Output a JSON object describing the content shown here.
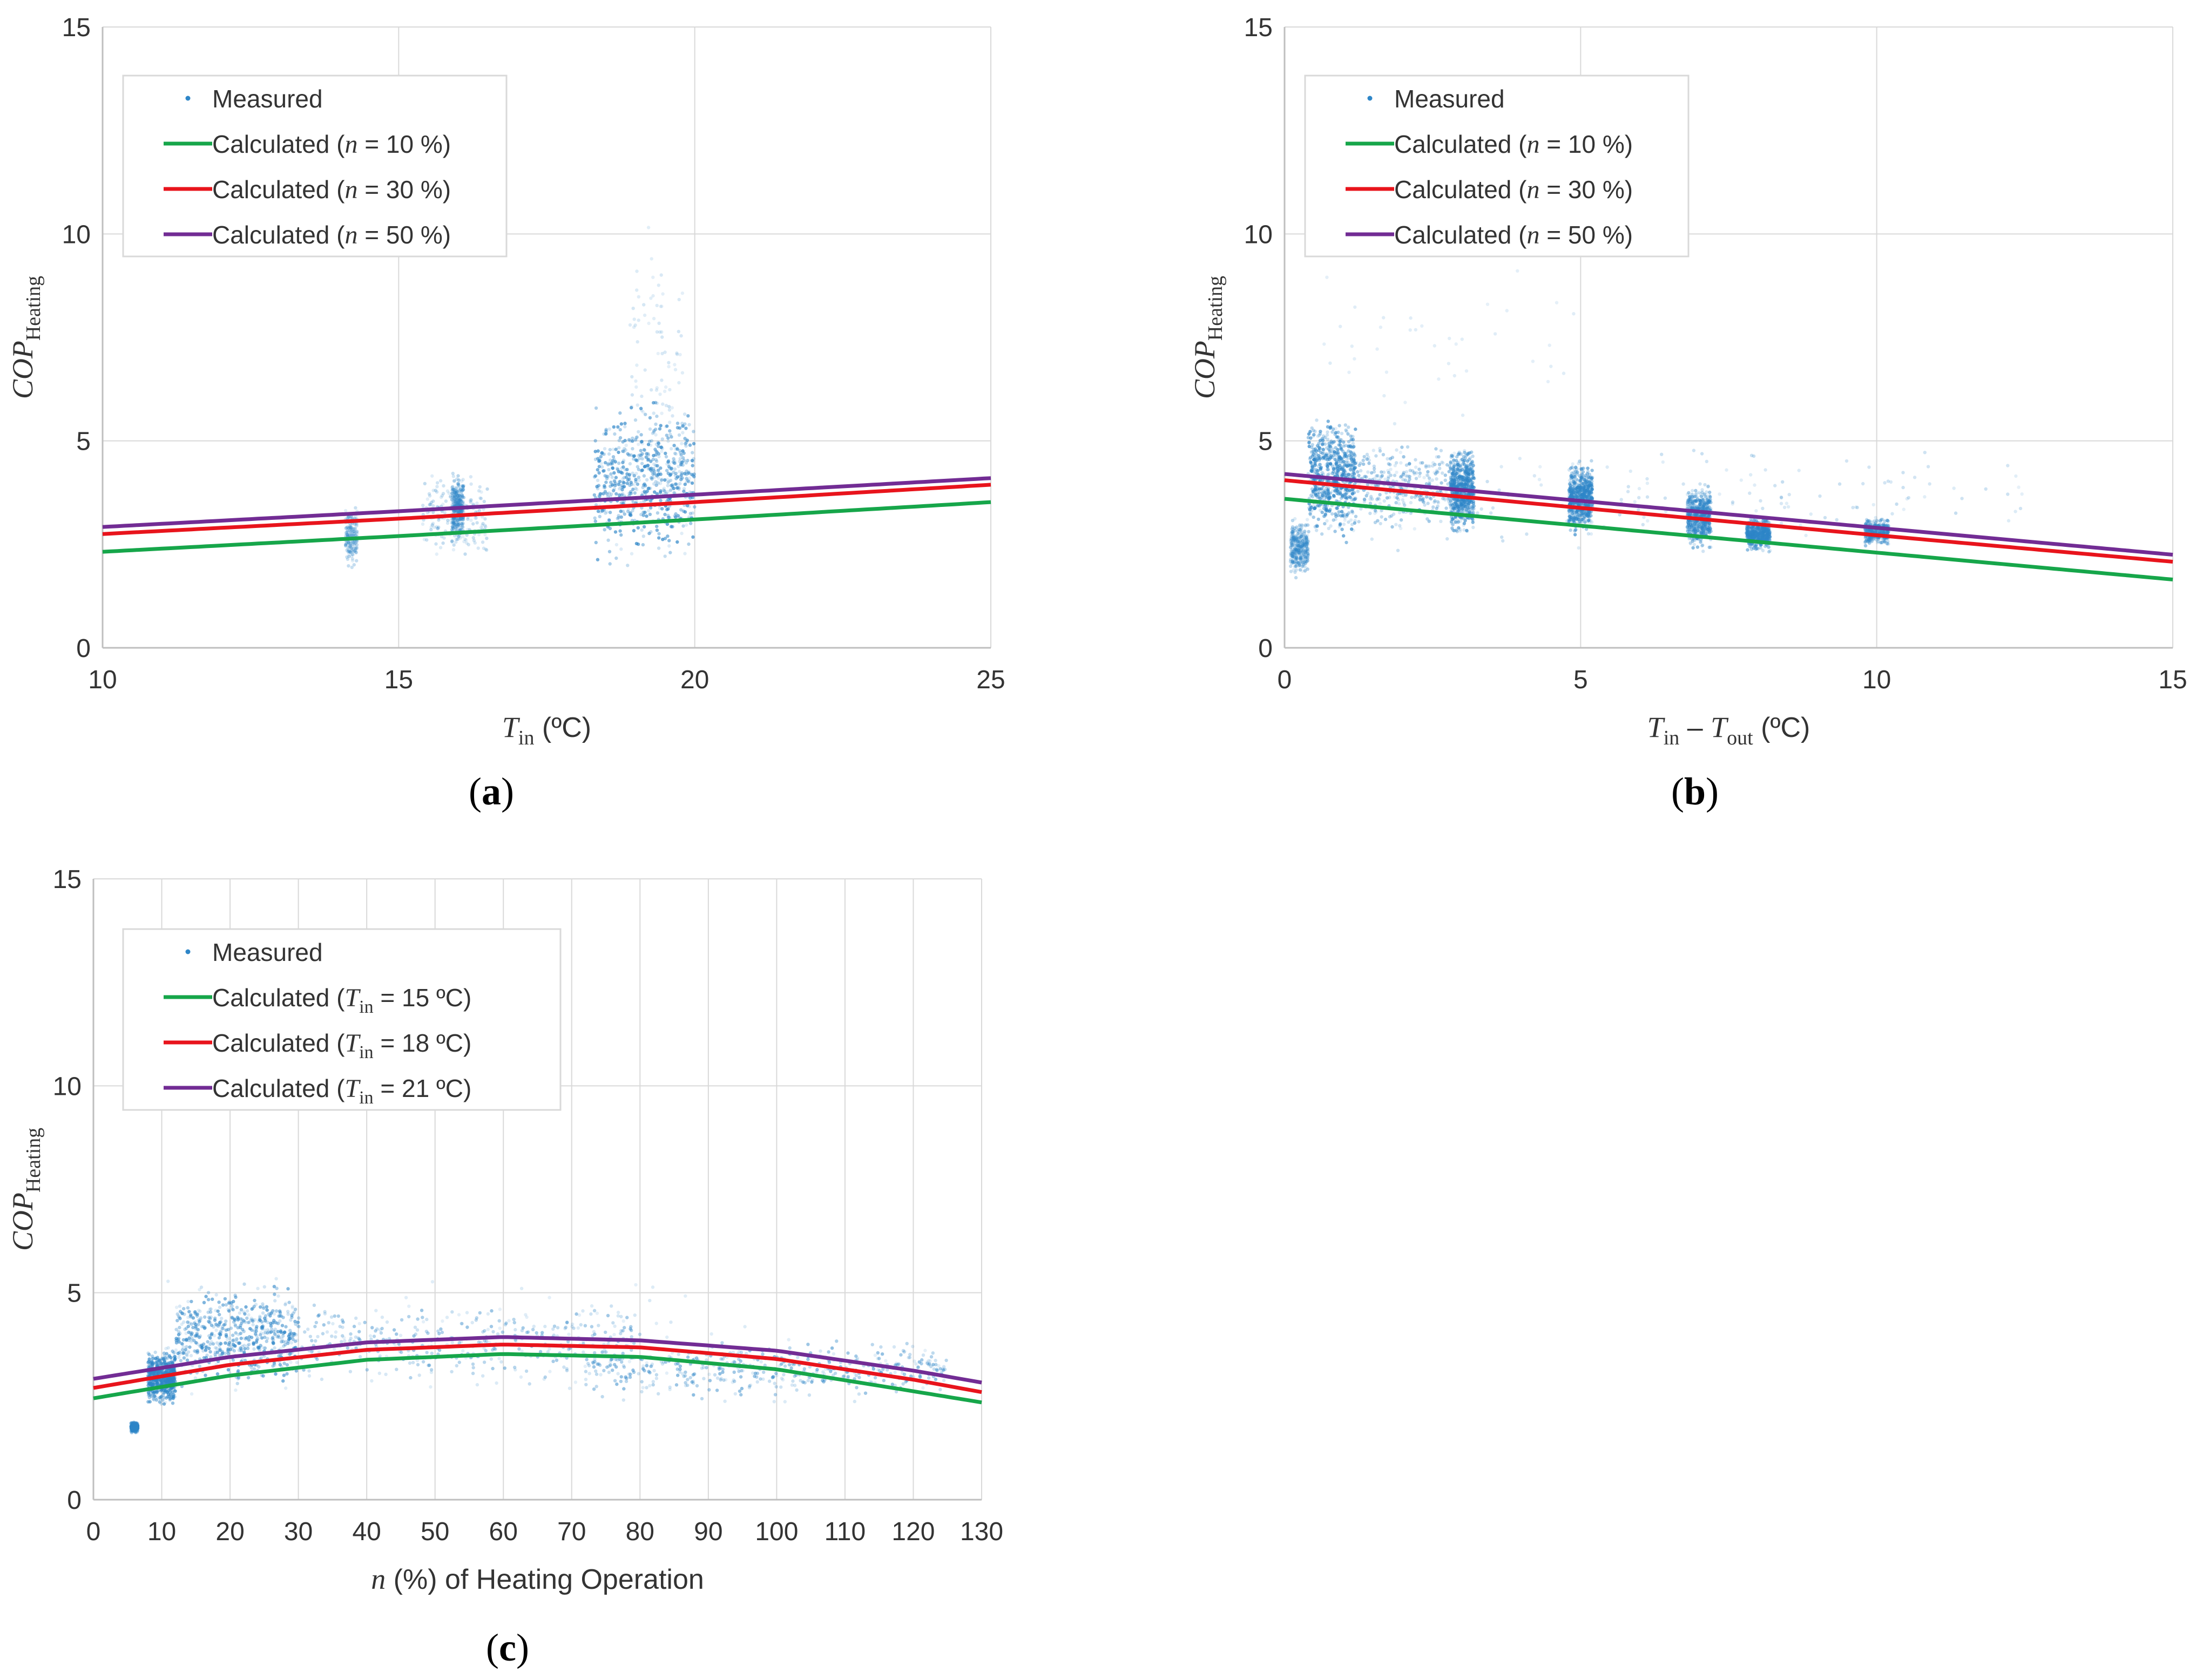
{
  "colors": {
    "measured": "#2e86c8",
    "green": "#16a64a",
    "red": "#e8141c",
    "purple": "#722c94",
    "grid": "#d9d9d9",
    "axis": "#bfbfbf",
    "text": "#333333"
  },
  "chart_data": [
    {
      "panel_label": "(a)",
      "label_open": "(",
      "label_letter": "a",
      "label_close": ")",
      "type": "scatter",
      "xlabel": {
        "var": "T",
        "sub": "in",
        "unit": " (ºC)"
      },
      "ylabel": {
        "var": "COP",
        "sub": "Heating"
      },
      "xlim": [
        10,
        25
      ],
      "ylim": [
        0,
        15
      ],
      "xticks": [
        10,
        15,
        20,
        25
      ],
      "yticks": [
        0,
        5,
        10,
        15
      ],
      "grid": true,
      "legend_position": "top-left",
      "legend": [
        {
          "kind": "marker",
          "color": "measured",
          "text": "Measured"
        },
        {
          "kind": "line",
          "color": "green",
          "prefix": "Calculated (",
          "var": "n",
          "sub": "",
          "suffix": " = 10 %)"
        },
        {
          "kind": "line",
          "color": "red",
          "prefix": "Calculated (",
          "var": "n",
          "sub": "",
          "suffix": " = 30 %)"
        },
        {
          "kind": "line",
          "color": "purple",
          "prefix": "Calculated (",
          "var": "n",
          "sub": "",
          "suffix": " = 50 %)"
        }
      ],
      "series": [
        {
          "name": "Calculated (n = 10 %)",
          "color": "green",
          "x": [
            10,
            15,
            20,
            25
          ],
          "y": [
            2.32,
            2.7,
            3.1,
            3.52
          ]
        },
        {
          "name": "Calculated (n = 30 %)",
          "color": "red",
          "x": [
            10,
            15,
            20,
            25
          ],
          "y": [
            2.75,
            3.12,
            3.52,
            3.94
          ]
        },
        {
          "name": "Calculated (n = 50 %)",
          "color": "purple",
          "x": [
            10,
            15,
            20,
            25
          ],
          "y": [
            2.92,
            3.3,
            3.7,
            4.1
          ]
        }
      ],
      "measured": {
        "name": "Measured",
        "clusters": [
          {
            "x": [
              14.1,
              14.3
            ],
            "y": [
              1.7,
              3.7
            ],
            "density": 0.3
          },
          {
            "x": [
              15.4,
              16.5
            ],
            "y": [
              1.9,
              4.5
            ],
            "density": 0.3
          },
          {
            "x": [
              15.9,
              16.1
            ],
            "y": [
              2.4,
              4.4
            ],
            "density": 0.5
          },
          {
            "x": [
              18.3,
              20.0
            ],
            "y": [
              1.8,
              6.3
            ],
            "density": 1.0
          },
          {
            "x": [
              18.9,
              19.8
            ],
            "y": [
              2.2,
              10.9
            ],
            "density": 0.15
          }
        ]
      }
    },
    {
      "panel_label": "(b)",
      "label_open": "(",
      "label_letter": "b",
      "label_close": ")",
      "type": "scatter",
      "xlabel": {
        "var": "T",
        "sub": "in",
        "mid": " – ",
        "var2": "T",
        "sub2": "out",
        "unit": " (ºC)"
      },
      "ylabel": {
        "var": "COP",
        "sub": "Heating"
      },
      "xlim": [
        0,
        15
      ],
      "ylim": [
        0,
        15
      ],
      "xticks": [
        0,
        5,
        10,
        15
      ],
      "yticks": [
        0,
        5,
        10,
        15
      ],
      "grid": true,
      "legend_position": "top-left",
      "legend": [
        {
          "kind": "marker",
          "color": "measured",
          "text": "Measured"
        },
        {
          "kind": "line",
          "color": "green",
          "prefix": "Calculated (",
          "var": "n",
          "sub": "",
          "suffix": " = 10 %)"
        },
        {
          "kind": "line",
          "color": "red",
          "prefix": "Calculated (",
          "var": "n",
          "sub": "",
          "suffix": " = 30 %)"
        },
        {
          "kind": "line",
          "color": "purple",
          "prefix": "Calculated (",
          "var": "n",
          "sub": "",
          "suffix": " = 50 %)"
        }
      ],
      "series": [
        {
          "name": "Calculated (n = 10 %)",
          "color": "green",
          "x": [
            0,
            5,
            10,
            15
          ],
          "y": [
            3.6,
            2.95,
            2.3,
            1.65
          ]
        },
        {
          "name": "Calculated (n = 30 %)",
          "color": "red",
          "x": [
            0,
            5,
            10,
            15
          ],
          "y": [
            4.05,
            3.38,
            2.72,
            2.08
          ]
        },
        {
          "name": "Calculated (n = 50 %)",
          "color": "purple",
          "x": [
            0,
            5,
            10,
            15
          ],
          "y": [
            4.2,
            3.55,
            2.9,
            2.25
          ]
        }
      ],
      "measured": {
        "name": "Measured",
        "clusters": [
          {
            "x": [
              0.1,
              0.4
            ],
            "y": [
              1.6,
              3.2
            ],
            "density": 0.5
          },
          {
            "x": [
              0.4,
              1.2
            ],
            "y": [
              2.4,
              5.9
            ],
            "density": 1.0
          },
          {
            "x": [
              1.2,
              3.2
            ],
            "y": [
              2.7,
              5.1
            ],
            "density": 0.6
          },
          {
            "x": [
              2.8,
              3.2
            ],
            "y": [
              2.6,
              5.0
            ],
            "density": 0.9
          },
          {
            "x": [
              4.8,
              5.2
            ],
            "y": [
              2.6,
              4.6
            ],
            "density": 0.9
          },
          {
            "x": [
              6.8,
              7.2
            ],
            "y": [
              2.3,
              4.0
            ],
            "density": 0.8
          },
          {
            "x": [
              7.8,
              8.2
            ],
            "y": [
              2.3,
              3.2
            ],
            "density": 0.8
          },
          {
            "x": [
              9.8,
              10.2
            ],
            "y": [
              2.4,
              3.2
            ],
            "density": 0.6
          },
          {
            "x": [
              1.0,
              12.5
            ],
            "y": [
              2.0,
              5.3
            ],
            "density": 0.25
          },
          {
            "x": [
              0.5,
              5.0
            ],
            "y": [
              5.0,
              9.5
            ],
            "density": 0.06
          }
        ]
      }
    },
    {
      "panel_label": "(c)",
      "label_open": "(",
      "label_letter": "c",
      "label_close": ")",
      "type": "scatter",
      "xlabel": {
        "var": "n",
        "sub": "",
        "unit": " (%) of Heating Operation"
      },
      "ylabel": {
        "var": "COP",
        "sub": "Heating"
      },
      "xlim": [
        0,
        130
      ],
      "ylim": [
        0,
        15
      ],
      "xticks": [
        0,
        10,
        20,
        30,
        40,
        50,
        60,
        70,
        80,
        90,
        100,
        110,
        120,
        130
      ],
      "yticks": [
        0,
        5,
        10,
        15
      ],
      "grid": true,
      "legend_position": "top-left",
      "legend": [
        {
          "kind": "marker",
          "color": "measured",
          "text": "Measured"
        },
        {
          "kind": "line",
          "color": "green",
          "prefix": "Calculated (",
          "var": "T",
          "sub": "in",
          "suffix": " = 15 ºC)"
        },
        {
          "kind": "line",
          "color": "red",
          "prefix": "Calculated (",
          "var": "T",
          "sub": "in",
          "suffix": " = 18 ºC)"
        },
        {
          "kind": "line",
          "color": "purple",
          "prefix": "Calculated (",
          "var": "T",
          "sub": "in",
          "suffix": " = 21 ºC)"
        }
      ],
      "series": [
        {
          "name": "Calculated (Tin = 15 ºC)",
          "color": "green",
          "x": [
            0,
            20,
            40,
            60,
            80,
            100,
            120,
            130
          ],
          "y": [
            2.45,
            3.0,
            3.38,
            3.52,
            3.45,
            3.15,
            2.62,
            2.35
          ]
        },
        {
          "name": "Calculated (Tin = 18 ºC)",
          "color": "red",
          "x": [
            0,
            20,
            40,
            60,
            80,
            100,
            120,
            130
          ],
          "y": [
            2.7,
            3.26,
            3.62,
            3.75,
            3.68,
            3.4,
            2.9,
            2.6
          ]
        },
        {
          "name": "Calculated (Tin = 21 ºC)",
          "color": "purple",
          "x": [
            0,
            20,
            40,
            60,
            80,
            100,
            120,
            130
          ],
          "y": [
            2.92,
            3.45,
            3.8,
            3.93,
            3.85,
            3.6,
            3.12,
            2.83
          ]
        }
      ],
      "measured": {
        "name": "Measured",
        "clusters": [
          {
            "x": [
              5.5,
              6.5
            ],
            "y": [
              1.6,
              1.9
            ],
            "density": 0.6
          },
          {
            "x": [
              8,
              12
            ],
            "y": [
              2.2,
              3.7
            ],
            "density": 1.0
          },
          {
            "x": [
              12,
              30
            ],
            "y": [
              2.5,
              5.4
            ],
            "density": 0.9
          },
          {
            "x": [
              30,
              80
            ],
            "y": [
              2.6,
              5.0
            ],
            "density": 0.6
          },
          {
            "x": [
              72,
              125
            ],
            "y": [
              2.3,
              4.0
            ],
            "density": 0.7
          },
          {
            "x": [
              10,
              110
            ],
            "y": [
              1.5,
              6.2
            ],
            "density": 0.12
          }
        ]
      }
    }
  ]
}
